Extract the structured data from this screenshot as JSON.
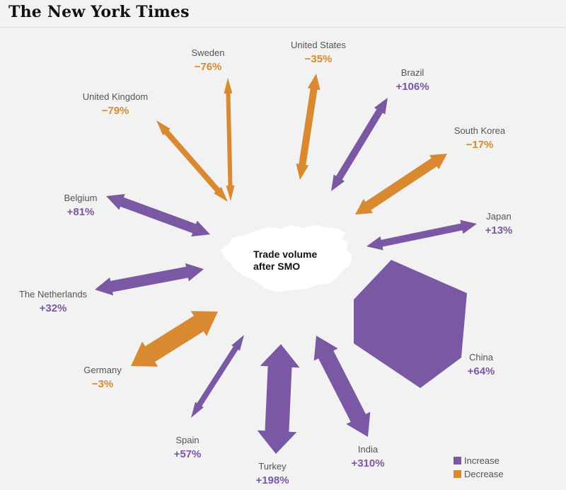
{
  "masthead": "The New York Times",
  "center": {
    "line1": "Trade volume",
    "line2": "after SMO"
  },
  "colors": {
    "increase": "#7b58a4",
    "decrease": "#d9892f",
    "russia": "#ffffff"
  },
  "countries": [
    {
      "name": "Sweden",
      "value": "−76%",
      "change": -76,
      "trend": "decrease"
    },
    {
      "name": "United States",
      "value": "−35%",
      "change": -35,
      "trend": "decrease"
    },
    {
      "name": "Brazil",
      "value": "+106%",
      "change": 106,
      "trend": "increase"
    },
    {
      "name": "United Kingdom",
      "value": "−79%",
      "change": -79,
      "trend": "decrease"
    },
    {
      "name": "South Korea",
      "value": "−17%",
      "change": -17,
      "trend": "decrease"
    },
    {
      "name": "Belgium",
      "value": "+81%",
      "change": 81,
      "trend": "increase"
    },
    {
      "name": "Japan",
      "value": "+13%",
      "change": 13,
      "trend": "increase"
    },
    {
      "name": "The Netherlands",
      "value": "+32%",
      "change": 32,
      "trend": "increase"
    },
    {
      "name": "China",
      "value": "+64%",
      "change": 64,
      "trend": "increase"
    },
    {
      "name": "Germany",
      "value": "−3%",
      "change": -3,
      "trend": "decrease"
    },
    {
      "name": "Spain",
      "value": "+57%",
      "change": 57,
      "trend": "increase"
    },
    {
      "name": "India",
      "value": "+310%",
      "change": 310,
      "trend": "increase"
    },
    {
      "name": "Turkey",
      "value": "+198%",
      "change": 198,
      "trend": "increase"
    }
  ],
  "legend": {
    "increase": "Increase",
    "decrease": "Decrease"
  }
}
